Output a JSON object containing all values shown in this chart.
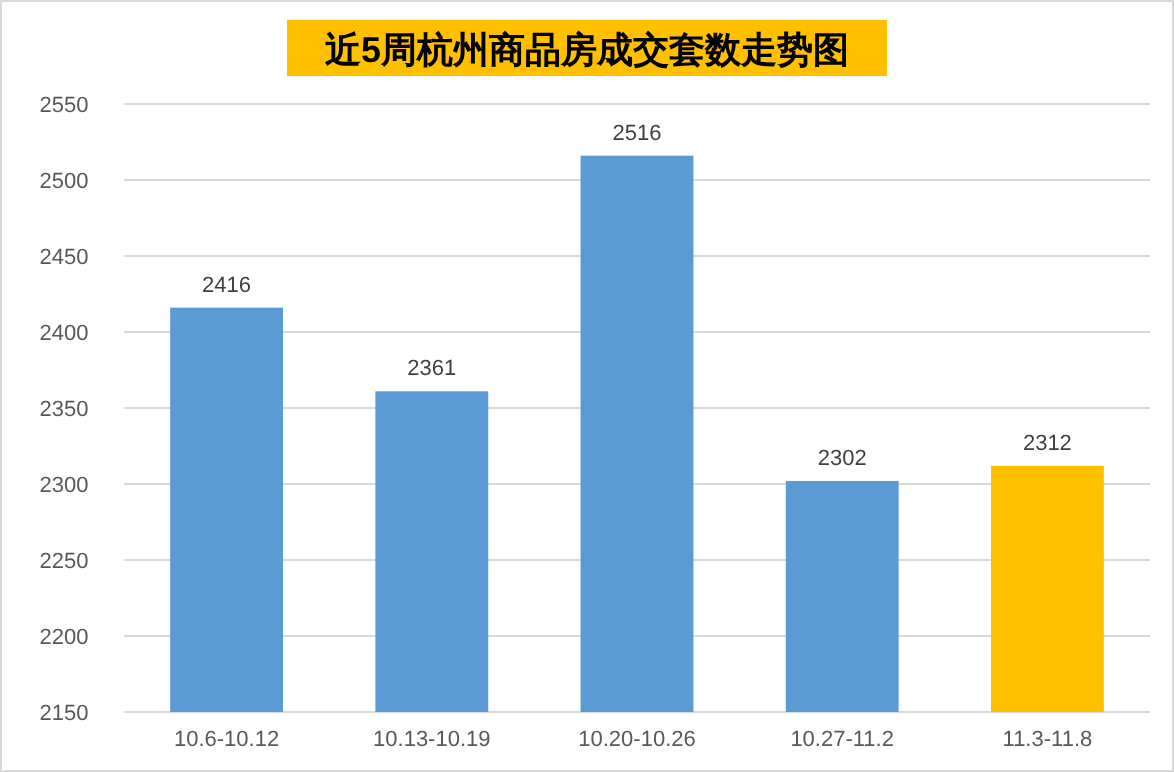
{
  "chart_data": {
    "type": "bar",
    "title": "近5周杭州商品房成交套数走势图",
    "categories": [
      "10.6-10.12",
      "10.13-10.19",
      "10.20-10.26",
      "10.27-11.2",
      "11.3-11.8"
    ],
    "values": [
      2416,
      2361,
      2516,
      2302,
      2312
    ],
    "colors": [
      "#5b9bd5",
      "#5b9bd5",
      "#5b9bd5",
      "#5b9bd5",
      "#ffc000"
    ],
    "ylim": [
      2150,
      2550
    ],
    "yticks": [
      2150,
      2200,
      2250,
      2300,
      2350,
      2400,
      2450,
      2500,
      2550
    ],
    "grid": "y",
    "data_labels": true
  }
}
